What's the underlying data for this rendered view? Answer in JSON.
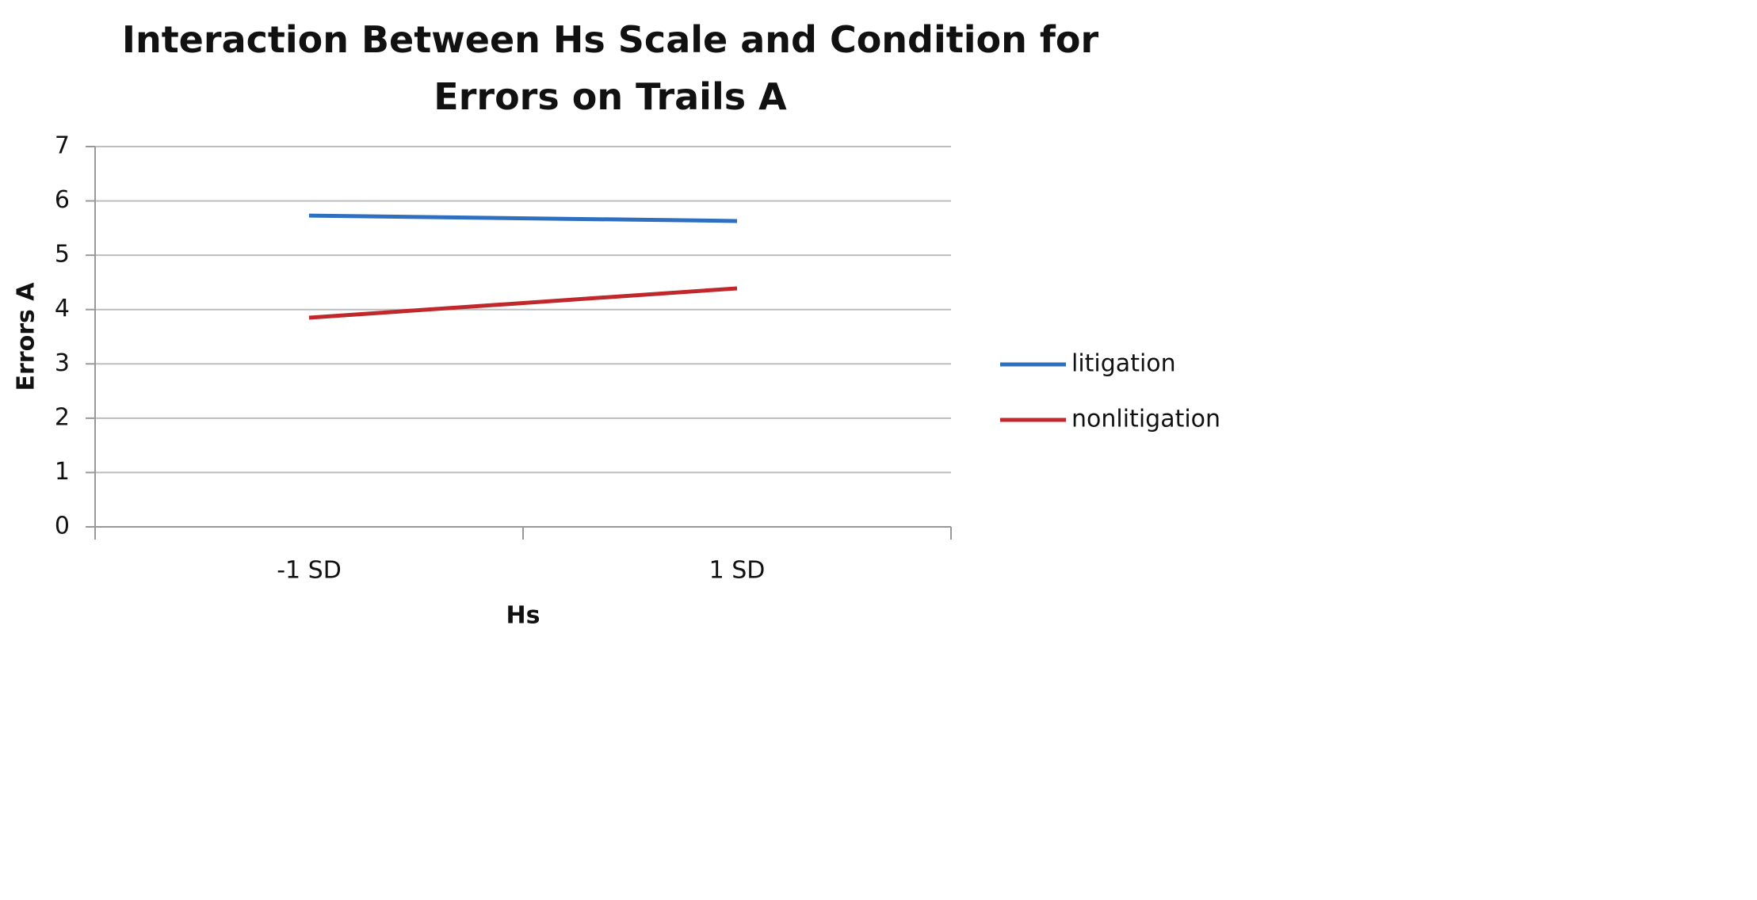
{
  "chart_data": {
    "type": "line",
    "title": "Interaction Between Hs Scale and Condition for Errors on Trails A",
    "x_label": "Hs",
    "y_label": "Errors A",
    "categories": [
      "-1 SD",
      "1 SD"
    ],
    "series": [
      {
        "name": "litigation",
        "color": "#2e6fc0",
        "values": [
          5.73,
          5.63
        ]
      },
      {
        "name": "nonlitigation",
        "color": "#c0282b",
        "values": [
          3.85,
          4.39
        ]
      }
    ],
    "ylim": [
      0,
      7
    ],
    "yticks": [
      0,
      1,
      2,
      3,
      4,
      5,
      6,
      7
    ],
    "grid": true,
    "legend": "right"
  }
}
